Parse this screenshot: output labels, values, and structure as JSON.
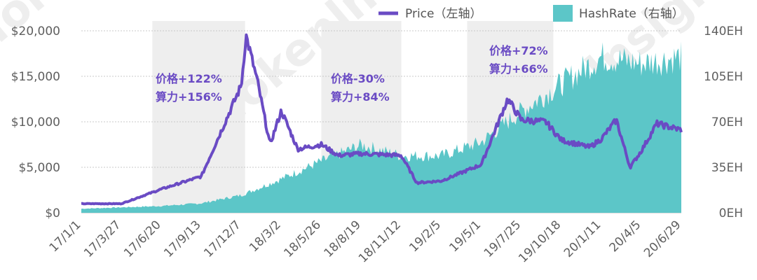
{
  "chart_data": {
    "type": "line",
    "legend": {
      "placement": "top",
      "price_label": "Price（左轴）",
      "hash_label": "HashRate（右轴）"
    },
    "colors": {
      "price": "#6a4bc4",
      "hashrate": "#5cc6c8",
      "shade": "#eeeeee",
      "annotation": "#6a4bc4",
      "grid": "#c8c8c8"
    },
    "y_left": {
      "ticks": [
        "$0",
        "$5,000",
        "$10,000",
        "$15,000",
        "$20,000"
      ],
      "range": [
        0,
        20000
      ]
    },
    "y_right": {
      "ticks": [
        "0EH",
        "35EH",
        "70EH",
        "105EH",
        "140EH"
      ],
      "range": [
        0,
        140
      ]
    },
    "x_ticks": [
      "17/1/1",
      "17/3/27",
      "17/6/20",
      "17/9/13",
      "17/12/7",
      "18/3/2",
      "18/5/26",
      "18/8/19",
      "18/11/12",
      "19/2/5",
      "19/5/1",
      "19/7/25",
      "19/10/18",
      "20/1/11",
      "20/4/5",
      "20/6/29"
    ],
    "shaded_periods": [
      {
        "from": "17/6/1",
        "to": "17/12/15"
      },
      {
        "from": "18/5/26",
        "to": "18/11/12"
      },
      {
        "from": "19/4/1",
        "to": "19/10/1"
      }
    ],
    "annotations": [
      {
        "line1": "价格+122%",
        "line2": "算力+156%"
      },
      {
        "line1": "价格-30%",
        "line2": "算力+84%"
      },
      {
        "line1": "价格+72%",
        "line2": "算力+66%"
      }
    ],
    "series": [
      {
        "name": "Price",
        "axis": "left",
        "x": [
          "17/1/1",
          "17/3/27",
          "17/6/20",
          "17/9/13",
          "17/12/7",
          "17/12/17",
          "18/1/10",
          "18/2/6",
          "18/3/2",
          "18/4/6",
          "18/5/26",
          "18/7/1",
          "18/8/19",
          "18/11/12",
          "18/12/15",
          "19/2/5",
          "19/5/1",
          "19/6/26",
          "19/7/25",
          "19/9/15",
          "19/10/18",
          "19/12/17",
          "20/1/11",
          "20/2/12",
          "20/3/12",
          "20/4/5",
          "20/5/8",
          "20/6/29"
        ],
        "values": [
          1000,
          1000,
          2600,
          4000,
          14000,
          19500,
          14500,
          7500,
          11200,
          7000,
          7500,
          6300,
          6500,
          6300,
          3300,
          3500,
          5300,
          12500,
          10200,
          10000,
          8000,
          7200,
          8100,
          10200,
          5000,
          6800,
          9800,
          9100
        ]
      },
      {
        "name": "HashRate",
        "axis": "right",
        "x": [
          "17/1/1",
          "17/3/27",
          "17/6/20",
          "17/9/13",
          "17/12/7",
          "18/3/2",
          "18/5/26",
          "18/8/19",
          "18/11/12",
          "19/2/5",
          "19/5/1",
          "19/7/25",
          "19/10/18",
          "20/1/11",
          "20/4/5",
          "20/6/29"
        ],
        "values": [
          3,
          4,
          5,
          7,
          13,
          25,
          38,
          50,
          42,
          42,
          52,
          75,
          95,
          115,
          110,
          115
        ]
      }
    ]
  },
  "watermark": "Tokenlnsight"
}
